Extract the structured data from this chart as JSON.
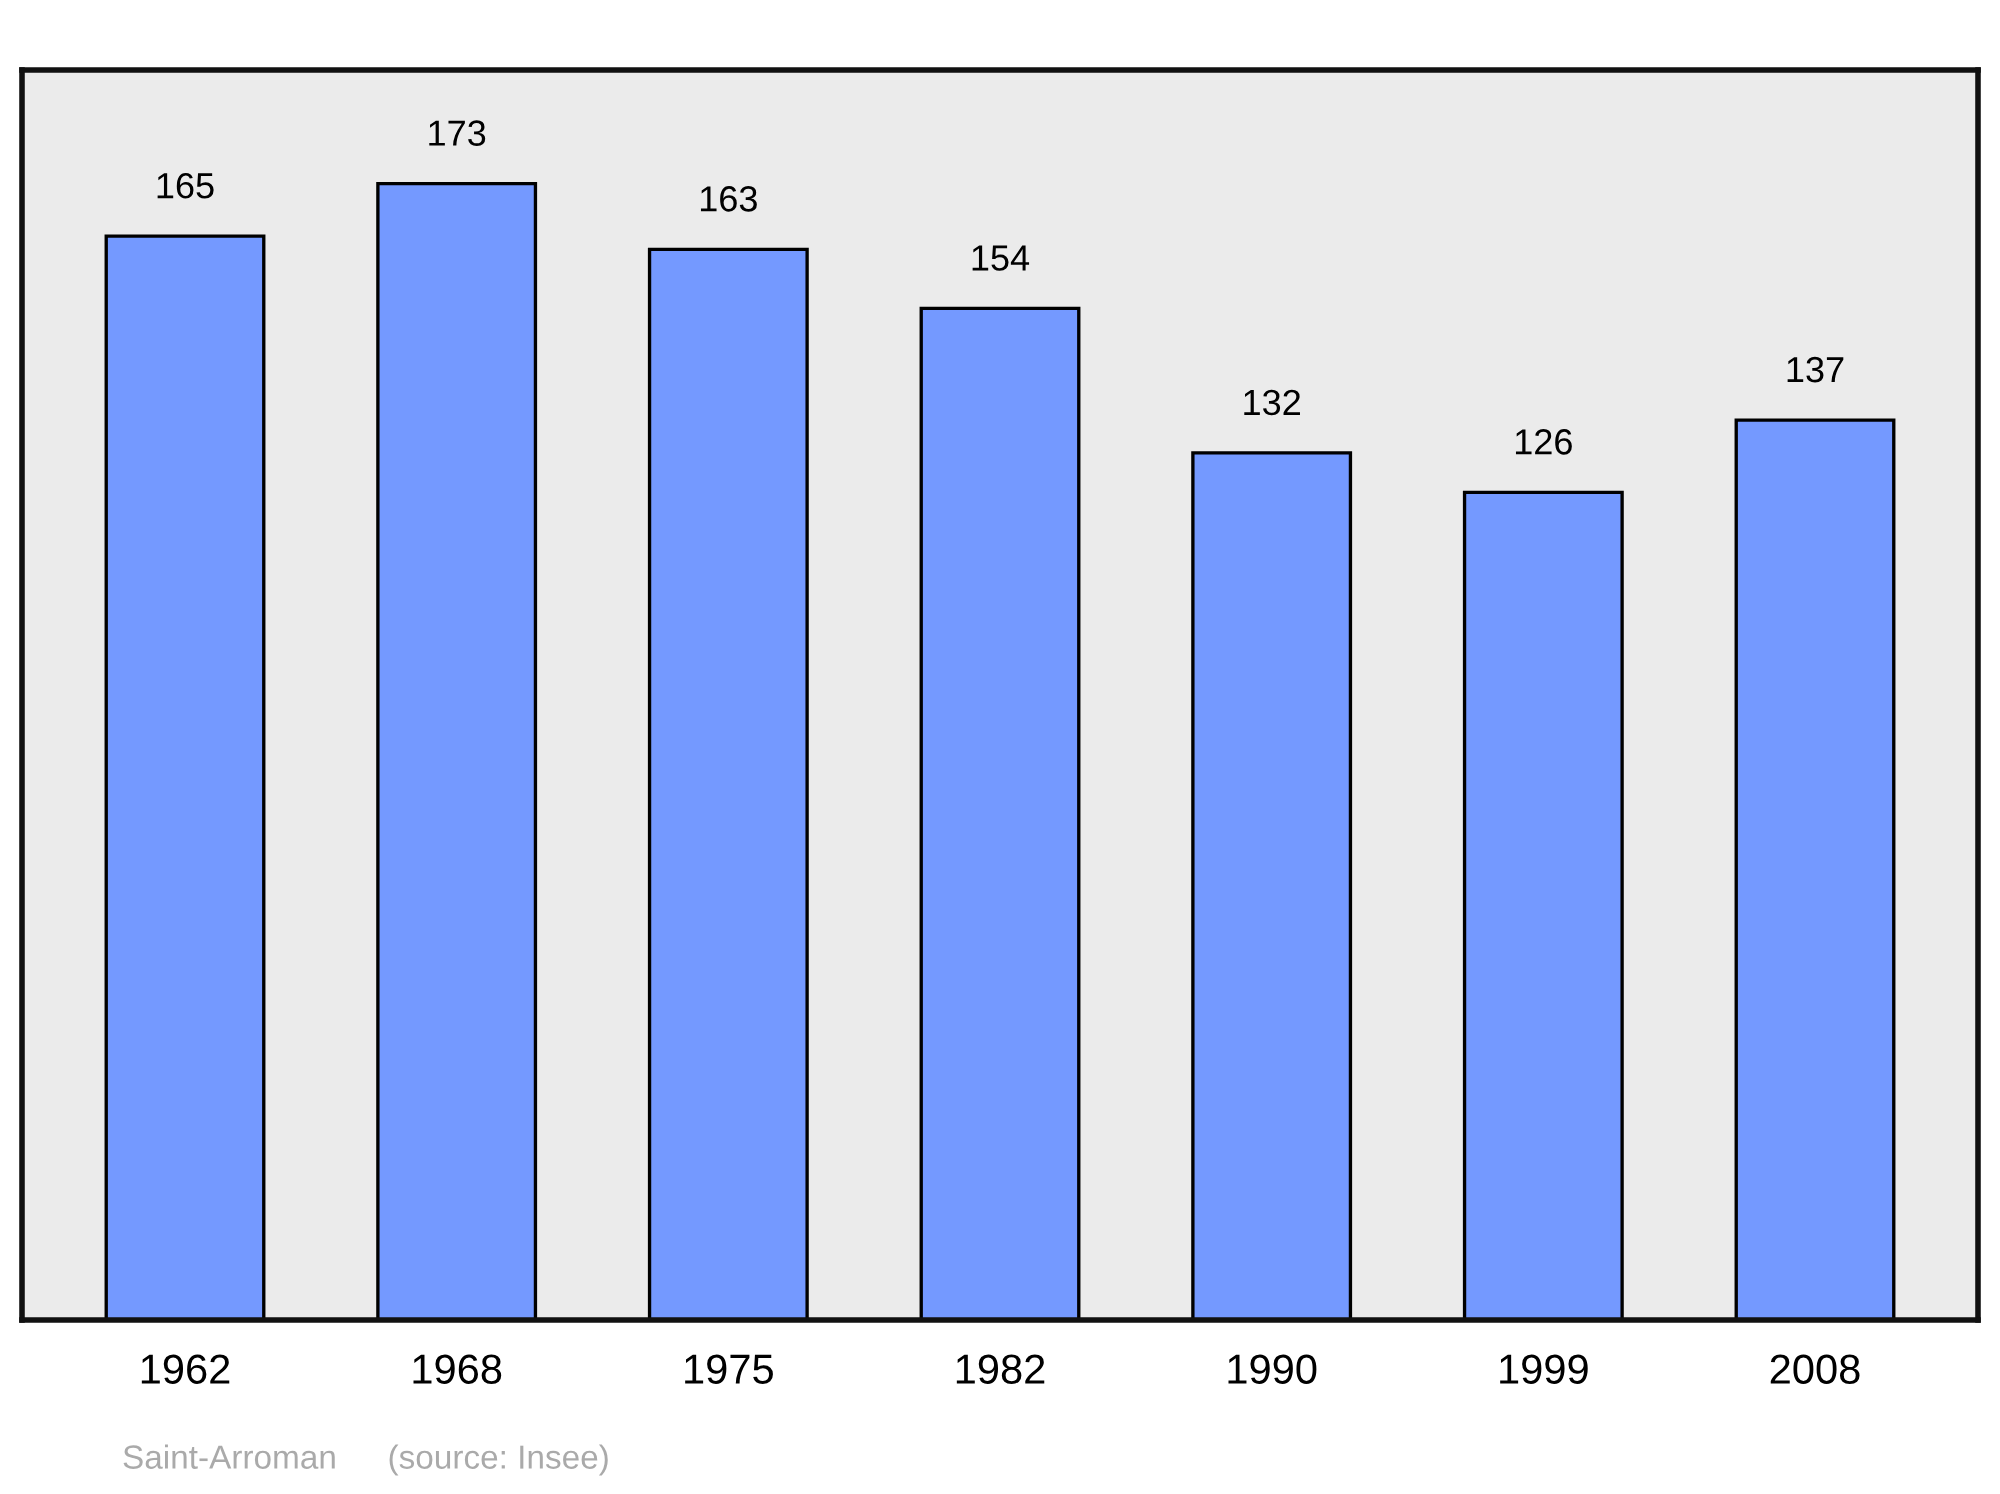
{
  "chart_data": {
    "type": "bar",
    "categories": [
      "1962",
      "1968",
      "1975",
      "1982",
      "1990",
      "1999",
      "2008"
    ],
    "values": [
      165,
      173,
      163,
      154,
      132,
      126,
      137
    ],
    "color": "#7499ff",
    "data_labels": true,
    "grid": false,
    "legend": false,
    "annotations": [
      "Saint-Arroman",
      "(source: Insee)"
    ]
  }
}
